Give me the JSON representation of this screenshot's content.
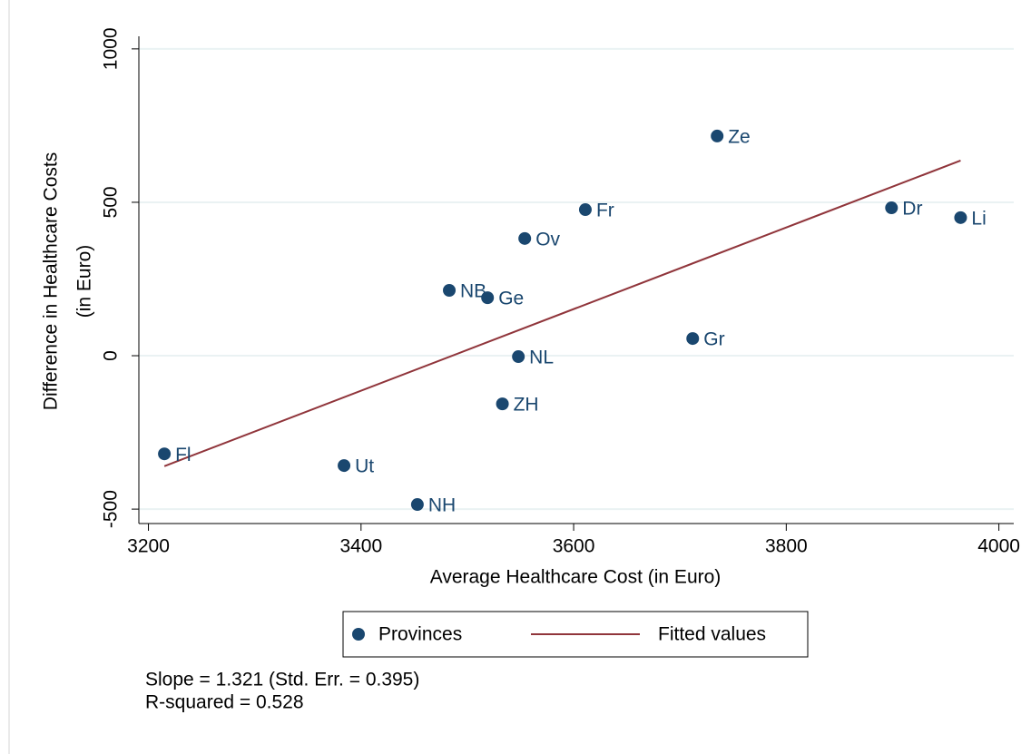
{
  "chart_data": {
    "type": "scatter",
    "x_label": "Average Healthcare Cost (in Euro)",
    "y_label": [
      "Difference in Healthcare Costs",
      "(in Euro)"
    ],
    "xlim": [
      3191,
      4014
    ],
    "xticks": [
      3200,
      3400,
      3600,
      3800,
      4000
    ],
    "ylim": [
      -547,
      1041
    ],
    "yticks": [
      -500,
      0,
      500,
      1000
    ],
    "grid": "y",
    "legend": "bottom",
    "series": [
      {
        "name": "Provinces",
        "type": "scatter",
        "color": "#1a476f",
        "labels": [
          "Fl",
          "Ut",
          "NH",
          "NB",
          "Ge",
          "Ov",
          "Fr",
          "NL",
          "ZH",
          "Gr",
          "Ze",
          "Dr",
          "Li"
        ],
        "x": [
          3215,
          3384,
          3453,
          3483,
          3519,
          3554,
          3611,
          3548,
          3533,
          3712,
          3735,
          3899,
          3964
        ],
        "values": [
          -320,
          -358,
          -485,
          213,
          189,
          382,
          476,
          -3,
          -157,
          56,
          716,
          482,
          450
        ]
      },
      {
        "name": "Fitted values",
        "type": "line",
        "color": "#90353b",
        "x": [
          3215,
          3964
        ],
        "values": [
          -360,
          636
        ]
      }
    ],
    "notes": [
      "Slope = 1.321 (Std. Err. = 0.395)",
      "R-squared = 0.528"
    ]
  }
}
